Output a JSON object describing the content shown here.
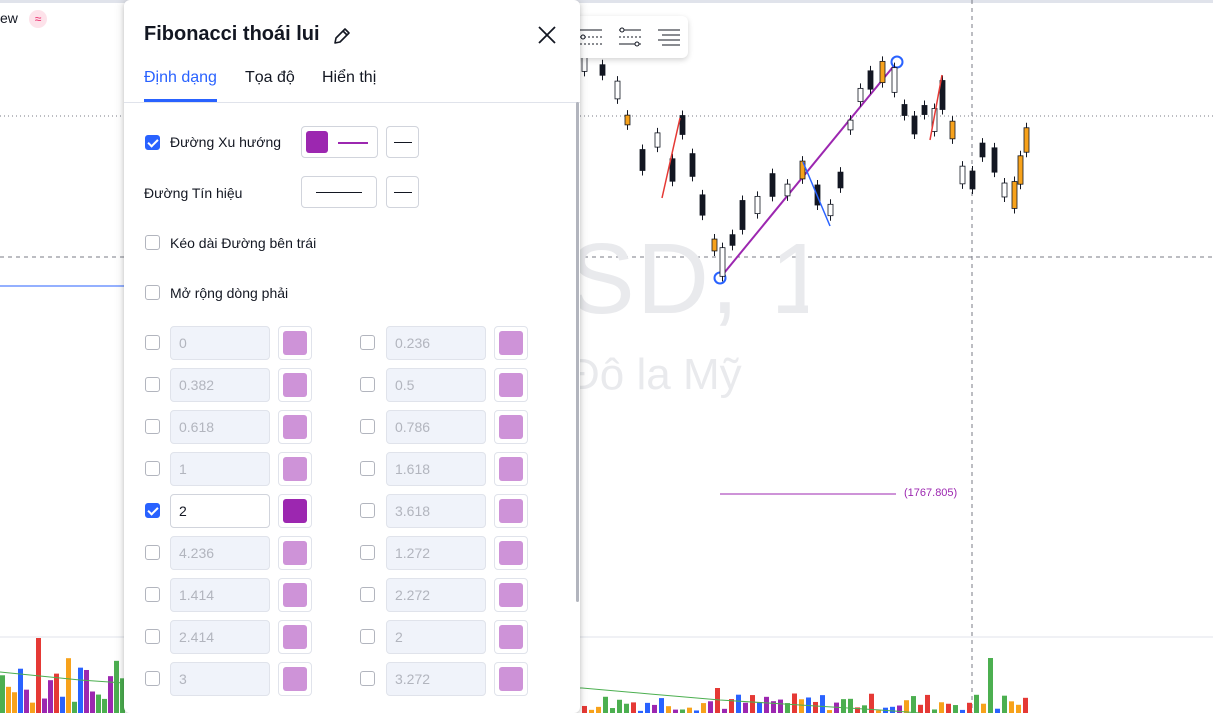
{
  "app": {
    "brand_partial": "ew",
    "watermark_symbol": "SD, 1",
    "watermark_currency": "Đô la Mỹ",
    "fib_price_label": "(1767.805)"
  },
  "dialog": {
    "title": "Fibonacci thoái lui",
    "tabs": [
      {
        "label": "Định dạng",
        "active": true
      },
      {
        "label": "Tọa độ",
        "active": false
      },
      {
        "label": "Hiển thị",
        "active": false
      }
    ],
    "trend_line": {
      "label": "Đường Xu hướng",
      "checked": true,
      "color": "#9c27b0"
    },
    "signal_line": {
      "label": "Đường Tín hiệu"
    },
    "extend_left": {
      "label": "Kéo dài Đường bên trái",
      "checked": false
    },
    "extend_right": {
      "label": "Mở rộng dòng phải",
      "checked": false
    },
    "levels": [
      {
        "value": "0",
        "checked": false
      },
      {
        "value": "0.236",
        "checked": false
      },
      {
        "value": "0.382",
        "checked": false
      },
      {
        "value": "0.5",
        "checked": false
      },
      {
        "value": "0.618",
        "checked": false
      },
      {
        "value": "0.786",
        "checked": false
      },
      {
        "value": "1",
        "checked": false
      },
      {
        "value": "1.618",
        "checked": false
      },
      {
        "value": "2",
        "checked": true
      },
      {
        "value": "3.618",
        "checked": false
      },
      {
        "value": "4.236",
        "checked": false
      },
      {
        "value": "1.272",
        "checked": false
      },
      {
        "value": "1.414",
        "checked": false
      },
      {
        "value": "2.272",
        "checked": false
      },
      {
        "value": "2.414",
        "checked": false
      },
      {
        "value": "2",
        "checked": false
      },
      {
        "value": "3",
        "checked": false
      },
      {
        "value": "3.272",
        "checked": false
      }
    ]
  },
  "colors": {
    "accent": "#2962ff",
    "level_active": "#9c27b0",
    "level_inactive": "#ce93d8"
  },
  "icons": {
    "float_toolbar": [
      "levels-dots-icon",
      "levels-dots-alt-icon",
      "levels-lines-icon"
    ],
    "edit": "pencil-icon",
    "close": "close-icon"
  }
}
